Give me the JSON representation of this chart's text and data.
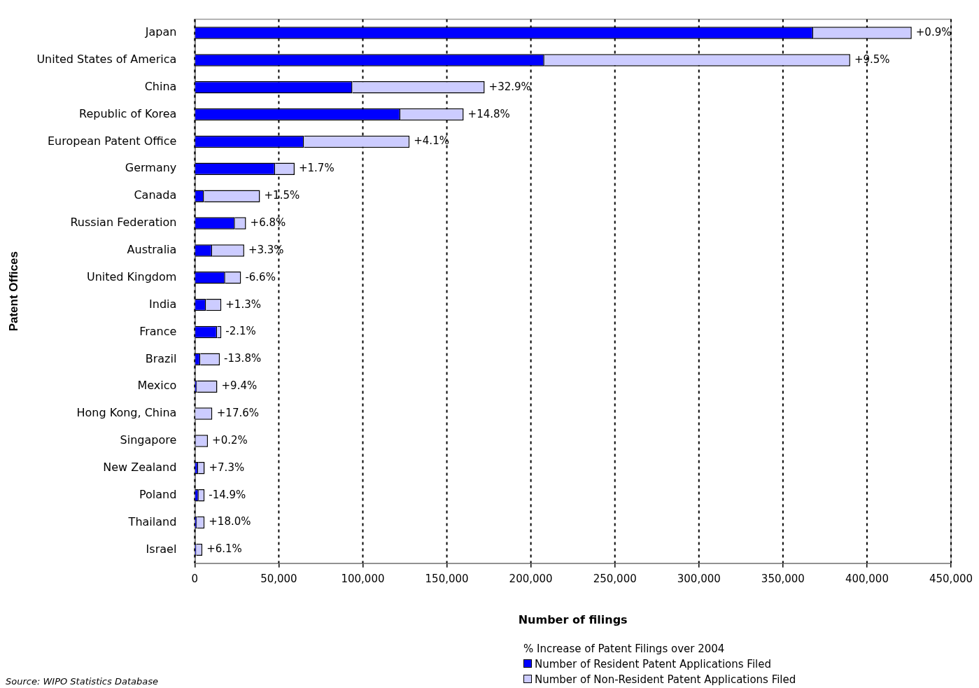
{
  "chart_data": {
    "type": "bar",
    "orientation": "horizontal",
    "stacked": true,
    "xlabel": "Number of filings",
    "ylabel": "Patent Offices",
    "legend_title": "% Increase of Patent Filings over 2004",
    "categories": [
      "Japan",
      "United States of America",
      "China",
      "Republic of Korea",
      "European Patent Office",
      "Germany",
      "Canada",
      "Russian Federation",
      "Australia",
      "United Kingdom",
      "India",
      "France",
      "Brazil",
      "Mexico",
      "Hong Kong, China",
      "Singapore",
      "New Zealand",
      "Poland",
      "Thailand",
      "Israel"
    ],
    "series": [
      {
        "name": "Number of Resident Patent Applications Filed",
        "color": "#0000ff",
        "values": [
          368000,
          208000,
          93800,
          122300,
          65000,
          47800,
          5500,
          23900,
          10300,
          18100,
          6700,
          13300,
          3300,
          1300,
          null,
          500,
          2000,
          2300,
          1300,
          900
        ]
      },
      {
        "name": "Number of Non-Resident Patent Applications Filed",
        "color": "#ccccff",
        "values": [
          58600,
          182000,
          78700,
          37700,
          62800,
          11600,
          33300,
          6600,
          19100,
          9400,
          9100,
          2500,
          11600,
          12100,
          10400,
          7300,
          3900,
          3500,
          4500,
          3600
        ]
      }
    ],
    "xlim": [
      0,
      450000
    ],
    "xticks": [
      {
        "value": 0,
        "label": "0"
      },
      {
        "value": 50000,
        "label": "50,000"
      },
      {
        "value": 100000,
        "label": "100,000"
      },
      {
        "value": 150000,
        "label": "150,000"
      },
      {
        "value": 200000,
        "label": "200,000"
      },
      {
        "value": 250000,
        "label": "250,000"
      },
      {
        "value": 300000,
        "label": "300,000"
      },
      {
        "value": 350000,
        "label": "350,000"
      },
      {
        "value": 400000,
        "label": "400,000"
      },
      {
        "value": 450000,
        "label": "450,000"
      }
    ],
    "grid": "x",
    "legend": "bottom right",
    "annotations": [
      {
        "text": "+0.9%",
        "x": 426600,
        "y": "Japan"
      },
      {
        "text": "+9.5%",
        "x": 390000,
        "y": "United States of America"
      },
      {
        "text": "+32.9%",
        "x": 172500,
        "y": "China"
      },
      {
        "text": "+14.8%",
        "x": 160000,
        "y": "Republic of Korea"
      },
      {
        "text": "+4.1%",
        "x": 127800,
        "y": "European Patent Office"
      },
      {
        "text": "+1.7%",
        "x": 59400,
        "y": "Germany"
      },
      {
        "text": "+1.5%",
        "x": 38800,
        "y": "Canada"
      },
      {
        "text": "+6.8%",
        "x": 30500,
        "y": "Russian Federation"
      },
      {
        "text": "+3.3%",
        "x": 29400,
        "y": "Australia"
      },
      {
        "text": "-6.6%",
        "x": 27500,
        "y": "United Kingdom"
      },
      {
        "text": "+1.3%",
        "x": 15800,
        "y": "India"
      },
      {
        "text": "-2.1%",
        "x": 15800,
        "y": "France"
      },
      {
        "text": "-13.8%",
        "x": 14900,
        "y": "Brazil"
      },
      {
        "text": "+9.4%",
        "x": 13400,
        "y": "Mexico"
      },
      {
        "text": "+17.6%",
        "x": 10600,
        "y": "Hong Kong, China"
      },
      {
        "text": "+0.2%",
        "x": 7800,
        "y": "Singapore"
      },
      {
        "text": "+7.3%",
        "x": 5900,
        "y": "New Zealand"
      },
      {
        "text": "-14.9%",
        "x": 5800,
        "y": "Poland"
      },
      {
        "text": "+18.0%",
        "x": 5800,
        "y": "Thailand"
      },
      {
        "text": "+6.1%",
        "x": 4500,
        "y": "Israel"
      },
      "Source: WIPO Statistics Database"
    ]
  }
}
